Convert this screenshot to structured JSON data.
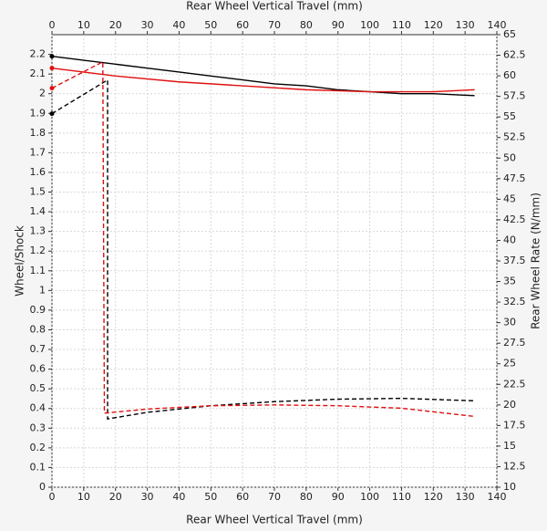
{
  "chart_data": {
    "type": "line",
    "xlabel": "Rear Wheel Vertical Travel (mm)",
    "x2label": "Rear Wheel Vertical Travel (mm)",
    "ylabel": "Wheel/Shock",
    "y2label": "Rear Wheel Rate (N/mm)",
    "xlim": [
      0,
      140
    ],
    "xticks": [
      0,
      10,
      20,
      30,
      40,
      50,
      60,
      70,
      80,
      90,
      100,
      110,
      120,
      130,
      140
    ],
    "ylim": [
      0,
      2.3
    ],
    "yticks": [
      0,
      0.1,
      0.2,
      0.3,
      0.4,
      0.5,
      0.6,
      0.7,
      0.8,
      0.9,
      1,
      1.1,
      1.2,
      1.3,
      1.4,
      1.5,
      1.6,
      1.7,
      1.8,
      1.9,
      2,
      2.1,
      2.2
    ],
    "y2lim": [
      10,
      65
    ],
    "y2ticks": [
      10,
      12.5,
      15,
      17.5,
      20,
      22.5,
      25,
      27.5,
      30,
      32.5,
      35,
      37.5,
      40,
      42.5,
      45,
      47.5,
      50,
      52.5,
      55,
      57.5,
      60,
      62.5,
      65
    ],
    "grid": true,
    "series": [
      {
        "color": "#000000",
        "style": "solid",
        "axis": "y",
        "x": [
          0,
          10,
          20,
          30,
          40,
          50,
          60,
          70,
          80,
          90,
          100,
          110,
          120,
          133
        ],
        "values": [
          2.19,
          2.17,
          2.15,
          2.13,
          2.11,
          2.09,
          2.07,
          2.05,
          2.04,
          2.02,
          2.01,
          2.0,
          2.0,
          1.99
        ]
      },
      {
        "color": "#e01010",
        "style": "solid",
        "axis": "y",
        "x": [
          0,
          20,
          40,
          60,
          80,
          100,
          120,
          133
        ],
        "values": [
          2.13,
          2.09,
          2.06,
          2.04,
          2.02,
          2.01,
          2.01,
          2.02
        ]
      },
      {
        "color": "#000000",
        "style": "dashed",
        "axis": "y2",
        "x": [
          0,
          17.5,
          17.5,
          30,
          50,
          70,
          90,
          110,
          133
        ],
        "values": [
          55.4,
          59.5,
          18.3,
          19.1,
          19.9,
          20.4,
          20.7,
          20.8,
          20.5
        ]
      },
      {
        "color": "#e01010",
        "style": "dashed",
        "axis": "y2",
        "x": [
          0,
          16,
          16.5,
          30,
          50,
          70,
          90,
          110,
          133
        ],
        "values": [
          58.5,
          61.7,
          19.0,
          19.5,
          19.9,
          20.0,
          19.9,
          19.6,
          18.6
        ]
      }
    ]
  }
}
